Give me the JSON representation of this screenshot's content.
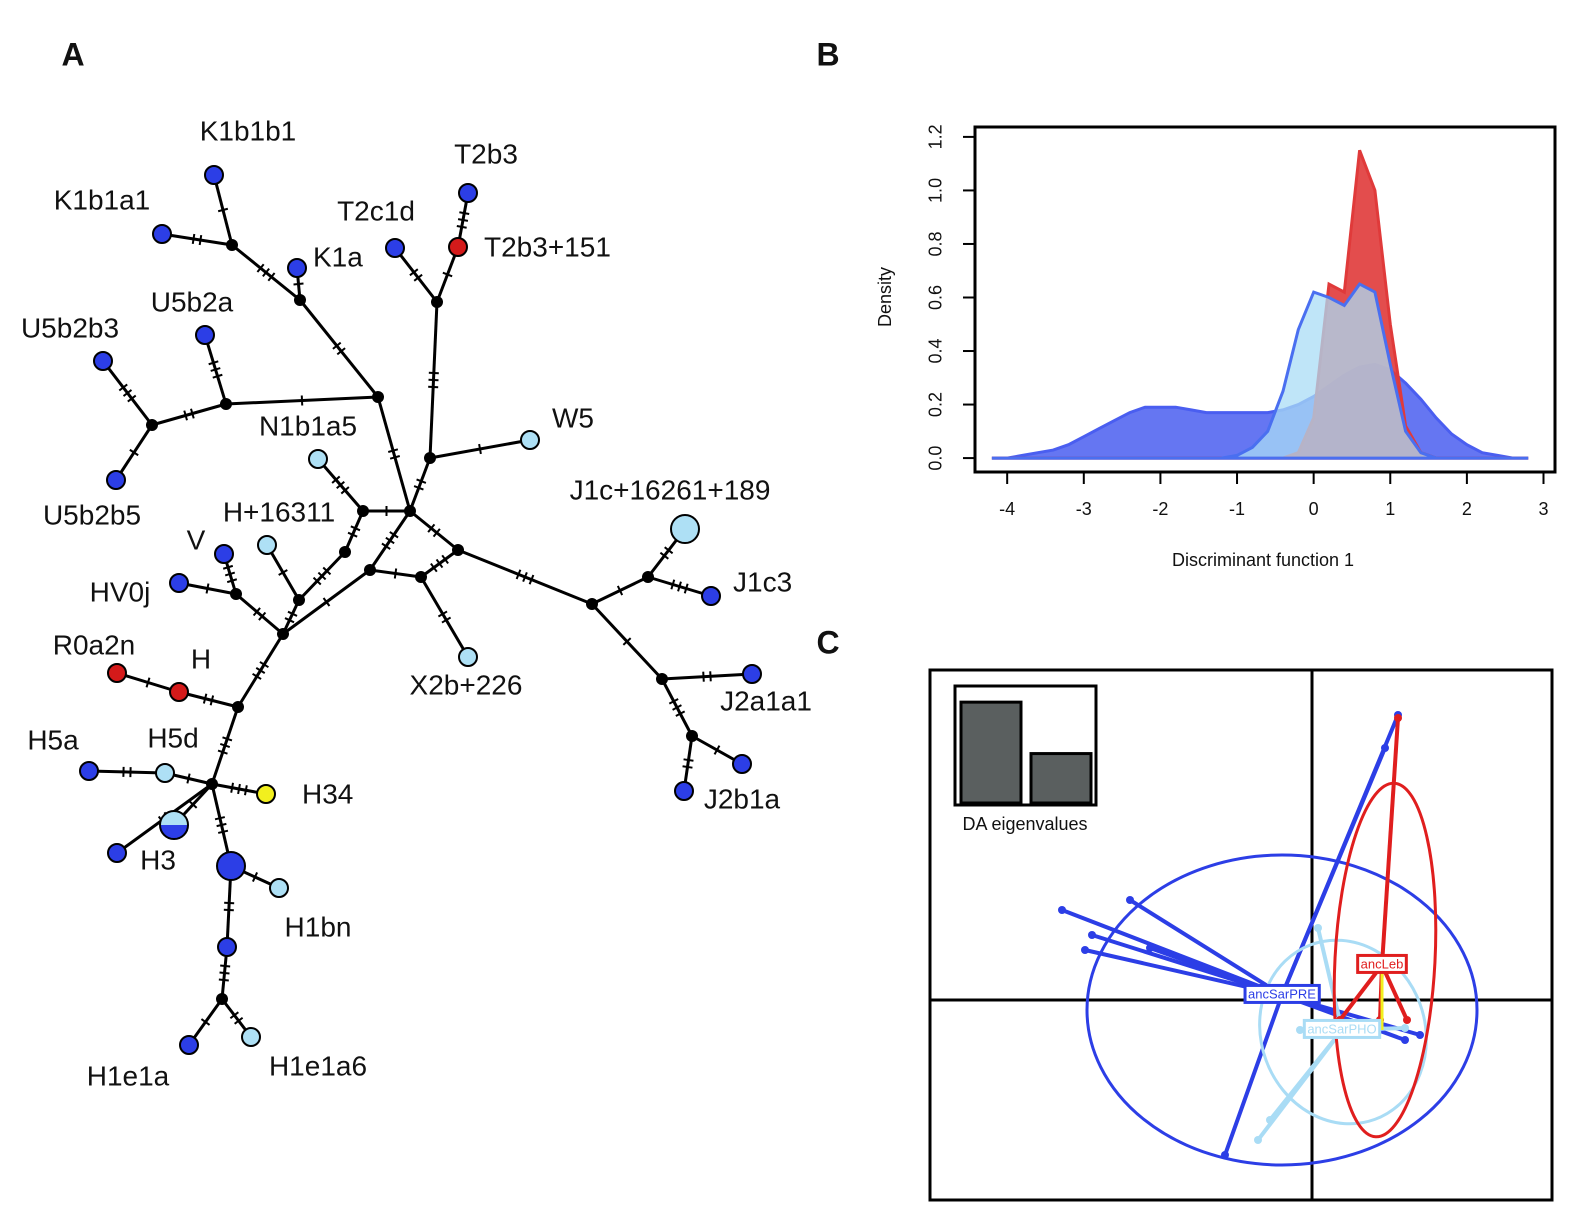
{
  "panels": {
    "a": "A",
    "b": "B",
    "c": "C"
  },
  "network": {
    "nodes": [
      {
        "label": "K1b1b1",
        "color": "#2c3ee6"
      },
      {
        "label": "K1b1a1",
        "color": "#2c3ee6"
      },
      {
        "label": "T2b3",
        "color": "#2c3ee6"
      },
      {
        "label": "T2c1d",
        "color": "#2c3ee6"
      },
      {
        "label": "T2b3+151",
        "color": "#d41a1a"
      },
      {
        "label": "K1a",
        "color": "#2c3ee6"
      },
      {
        "label": "U5b2a",
        "color": "#2c3ee6"
      },
      {
        "label": "U5b2b3",
        "color": "#2c3ee6"
      },
      {
        "label": "W5",
        "color": "#aee0f5"
      },
      {
        "label": "N1b1a5",
        "color": "#aee0f5"
      },
      {
        "label": "U5b2b5",
        "color": "#2c3ee6"
      },
      {
        "label": "J1c+16261+189",
        "color": "#aee0f5"
      },
      {
        "label": "H+16311",
        "color": "#aee0f5"
      },
      {
        "label": "V",
        "color": "#2c3ee6"
      },
      {
        "label": "HV0j",
        "color": "#2c3ee6"
      },
      {
        "label": "J1c3",
        "color": "#2c3ee6"
      },
      {
        "label": "R0a2n",
        "color": "#d41a1a"
      },
      {
        "label": "H",
        "color": "#d41a1a"
      },
      {
        "label": "X2b+226",
        "color": "#aee0f5"
      },
      {
        "label": "J2a1a1",
        "color": "#2c3ee6"
      },
      {
        "label": "H5a",
        "color": "#2c3ee6"
      },
      {
        "label": "H5d",
        "color": "#aee0f5"
      },
      {
        "label": "H34",
        "color": "#f2ef1e"
      },
      {
        "label": "J2b1a",
        "color": "#2c3ee6"
      },
      {
        "label": null,
        "color": "#2c3ee6"
      },
      {
        "label": "H3",
        "color": [
          "#aee0f5",
          "#2c3ee6"
        ]
      },
      {
        "label": null,
        "color": "#2c3ee6"
      },
      {
        "label": null,
        "color": "#2c3ee6"
      },
      {
        "label": "H1bn",
        "color": "#aee0f5"
      },
      {
        "label": null,
        "color": "#2c3ee6"
      },
      {
        "label": "H1e1a",
        "color": "#2c3ee6"
      },
      {
        "label": "H1e1a6",
        "color": "#aee0f5"
      }
    ]
  },
  "chart_data": [
    {
      "type": "area",
      "xlabel": "Discriminant function 1",
      "ylabel": "Density",
      "xlim": [
        -4.42,
        3.15
      ],
      "ylim": [
        -0.052,
        1.237
      ],
      "xticks": [
        -4,
        -3,
        -2,
        -1,
        0,
        1,
        2,
        3
      ],
      "yticks": [
        {
          "value": 0,
          "label": "0.0"
        },
        0.2,
        0.4,
        0.6,
        0.8,
        {
          "value": 1,
          "label": "1.0"
        },
        1.2
      ],
      "x": [
        -4.2,
        -4,
        -3.8,
        -3.6,
        -3.4,
        -3.2,
        -3,
        -2.8,
        -2.6,
        -2.4,
        -2.2,
        -2,
        -1.8,
        -1.6,
        -1.4,
        -1.2,
        -1,
        -0.8,
        -0.6,
        -0.4,
        -0.2,
        0,
        0.2,
        0.4,
        0.6,
        0.8,
        1,
        1.2,
        1.4,
        1.6,
        1.8,
        2,
        2.2,
        2.4,
        2.6,
        2.8
      ],
      "series": [
        {
          "color": "#4a5ef0",
          "opacity": 0.85,
          "values": [
            0,
            0,
            0.01,
            0.02,
            0.03,
            0.05,
            0.08,
            0.11,
            0.14,
            0.17,
            0.19,
            0.19,
            0.19,
            0.18,
            0.17,
            0.17,
            0.17,
            0.17,
            0.17,
            0.18,
            0.2,
            0.23,
            0.27,
            0.31,
            0.34,
            0.35,
            0.33,
            0.28,
            0.22,
            0.15,
            0.09,
            0.05,
            0.02,
            0.01,
            0,
            0
          ]
        },
        {
          "color": "#e03a3a",
          "opacity": 0.9,
          "values": [
            0,
            0,
            0,
            0,
            0,
            0,
            0,
            0,
            0,
            0,
            0,
            0,
            0,
            0,
            0,
            0,
            0,
            0,
            0,
            0,
            0.02,
            0.15,
            0.65,
            0.62,
            1.15,
            1.0,
            0.5,
            0.12,
            0.02,
            0,
            0,
            0,
            0,
            0,
            0,
            0
          ]
        },
        {
          "color": "#a9dcf5",
          "line_color": "#4a6ff0",
          "opacity": 0.75,
          "values": [
            0,
            0,
            0,
            0,
            0,
            0,
            0,
            0,
            0,
            0,
            0,
            0,
            0,
            0,
            0,
            0,
            0.01,
            0.04,
            0.1,
            0.25,
            0.48,
            0.62,
            0.6,
            0.57,
            0.65,
            0.62,
            0.35,
            0.1,
            0.02,
            0,
            0,
            0,
            0,
            0,
            0,
            0
          ]
        }
      ]
    },
    {
      "type": "scatter",
      "xlim": [
        -3.82,
        2.4
      ],
      "ylim": [
        -2.0,
        3.3
      ],
      "series": [
        {
          "name": "ancSarPRE",
          "color": "#2c3ee6",
          "x": [
            -2.5,
            -1.82,
            -2.2,
            -2.27,
            -1.62,
            -0.87,
            0.86,
            0.73,
            1.08,
            0.93
          ],
          "values": [
            0.9,
            1.0,
            0.65,
            0.5,
            0.52,
            -1.55,
            2.85,
            2.52,
            -0.35,
            -0.4
          ],
          "center": [
            -0.3,
            0.05
          ],
          "ellipse": {
            "cx": -0.3,
            "cy": -0.1,
            "rx": 1.95,
            "ry": 1.55,
            "angle": 0
          }
        },
        {
          "name": "ancSarPHO",
          "color": "#a9dcf5",
          "x": [
            -0.54,
            0.06,
            0.93,
            -0.12,
            -0.42
          ],
          "values": [
            -1.4,
            0.72,
            -0.28,
            -0.3,
            -1.2
          ],
          "center": [
            0.3,
            -0.3
          ],
          "ellipse": {
            "cx": 0.31,
            "cy": -0.32,
            "rx": 0.82,
            "ry": 0.93,
            "angle": 20
          }
        },
        {
          "name": "ancLeb",
          "color": "#e01e1e",
          "x": [
            0.86,
            0.68,
            0.95,
            0.28
          ],
          "values": [
            2.82,
            -0.2,
            -0.2,
            -0.2
          ],
          "center": [
            0.7,
            0.35
          ],
          "ellipse": {
            "cx": 0.73,
            "cy": 0.4,
            "rx": 0.5,
            "ry": 1.77,
            "angle": -3
          }
        }
      ],
      "eigenvalues": {
        "label": "DA eigenvalues",
        "values": [
          1.0,
          0.49
        ],
        "ylim": [
          0,
          1.16
        ]
      }
    }
  ]
}
